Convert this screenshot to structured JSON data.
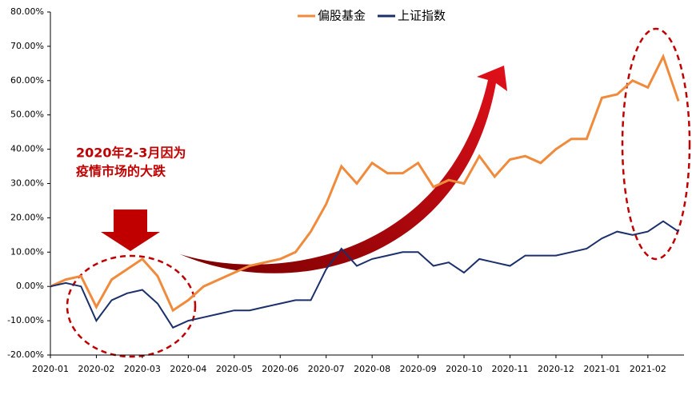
{
  "chart_data": {
    "type": "line",
    "categories": [
      "2020-01",
      null,
      null,
      "2020-02",
      null,
      null,
      "2020-03",
      null,
      null,
      "2020-04",
      null,
      null,
      "2020-05",
      null,
      null,
      "2020-06",
      null,
      null,
      "2020-07",
      null,
      null,
      "2020-08",
      null,
      null,
      "2020-09",
      null,
      null,
      "2020-10",
      null,
      null,
      "2020-11",
      null,
      null,
      "2020-12",
      null,
      null,
      "2021-01",
      null,
      null,
      "2021-02",
      null,
      null
    ],
    "series": [
      {
        "name": "偏股基金",
        "color": "#f08a3c",
        "values": [
          0,
          2,
          3,
          -6,
          2,
          5,
          8,
          3,
          -7,
          -4,
          0,
          2,
          4,
          6,
          7,
          8,
          10,
          16,
          24,
          35,
          30,
          36,
          33,
          33,
          36,
          29,
          31,
          30,
          38,
          32,
          37,
          38,
          36,
          40,
          43,
          43,
          55,
          56,
          60,
          58,
          67,
          54
        ]
      },
      {
        "name": "上证指数",
        "color": "#1b2f6b",
        "values": [
          0,
          1,
          0,
          -10,
          -4,
          -2,
          -1,
          -5,
          -12,
          -10,
          -9,
          -8,
          -7,
          -7,
          -6,
          -5,
          -4,
          -4,
          5,
          11,
          6,
          8,
          9,
          10,
          10,
          6,
          7,
          4,
          8,
          7,
          6,
          9,
          9,
          9,
          10,
          11,
          14,
          16,
          15,
          16,
          19,
          16
        ]
      }
    ],
    "ylim": [
      -20,
      80
    ],
    "yticks": [
      {
        "value": -20,
        "label": "-20.00%"
      },
      {
        "value": -10,
        "label": "-10.00%"
      },
      {
        "value": 0,
        "label": "0.00%"
      },
      {
        "value": 10,
        "label": "10.00%"
      },
      {
        "value": 20,
        "label": "20.00%"
      },
      {
        "value": 30,
        "label": "30.00%"
      },
      {
        "value": 40,
        "label": "40.00%"
      },
      {
        "value": 50,
        "label": "50.00%"
      },
      {
        "value": 60,
        "label": "60.00%"
      },
      {
        "value": 70,
        "label": "70.00%"
      },
      {
        "value": 80,
        "label": "80.00%"
      }
    ],
    "annotation": [
      "2020年2-3月因为",
      "疫情市场的大跌"
    ],
    "legend": "top"
  }
}
